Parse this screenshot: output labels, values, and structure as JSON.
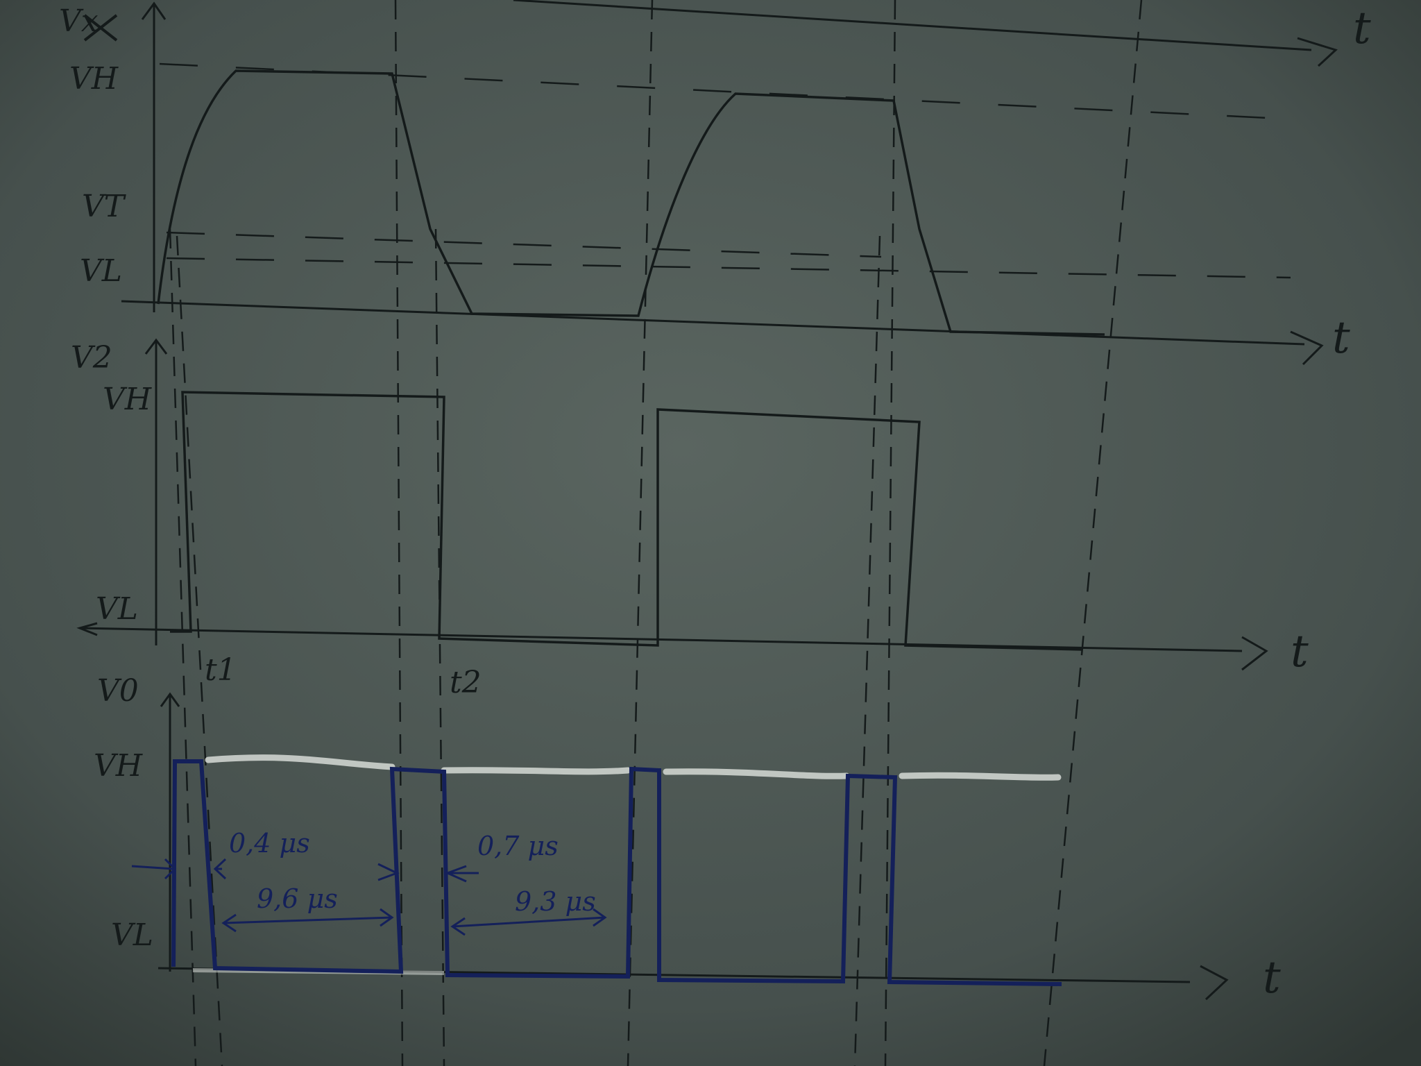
{
  "panels": {
    "input": {
      "axis_label": "Vx",
      "axis_label_struck": true,
      "levels": {
        "high": "VH",
        "threshold": "VT",
        "low": "VL"
      },
      "time_labels": [
        "t",
        "t"
      ]
    },
    "middle": {
      "axis_label": "V2",
      "levels": {
        "high": "VH",
        "low": "VL"
      },
      "time_label": "t",
      "markers": [
        "t1",
        "t2"
      ]
    },
    "output": {
      "axis_label": "V0",
      "levels": {
        "high": "VH",
        "low": "VL"
      },
      "time_label": "t",
      "pulse_widths": [
        "0,4 μs",
        "0,7 μs"
      ],
      "intervals": [
        "9,6 μs",
        "9,3 μs"
      ]
    }
  },
  "colors": {
    "paper": "#4a5451",
    "pencil": "#141a1a",
    "chalk": "#d6dbd6",
    "ink": "#14205a"
  }
}
